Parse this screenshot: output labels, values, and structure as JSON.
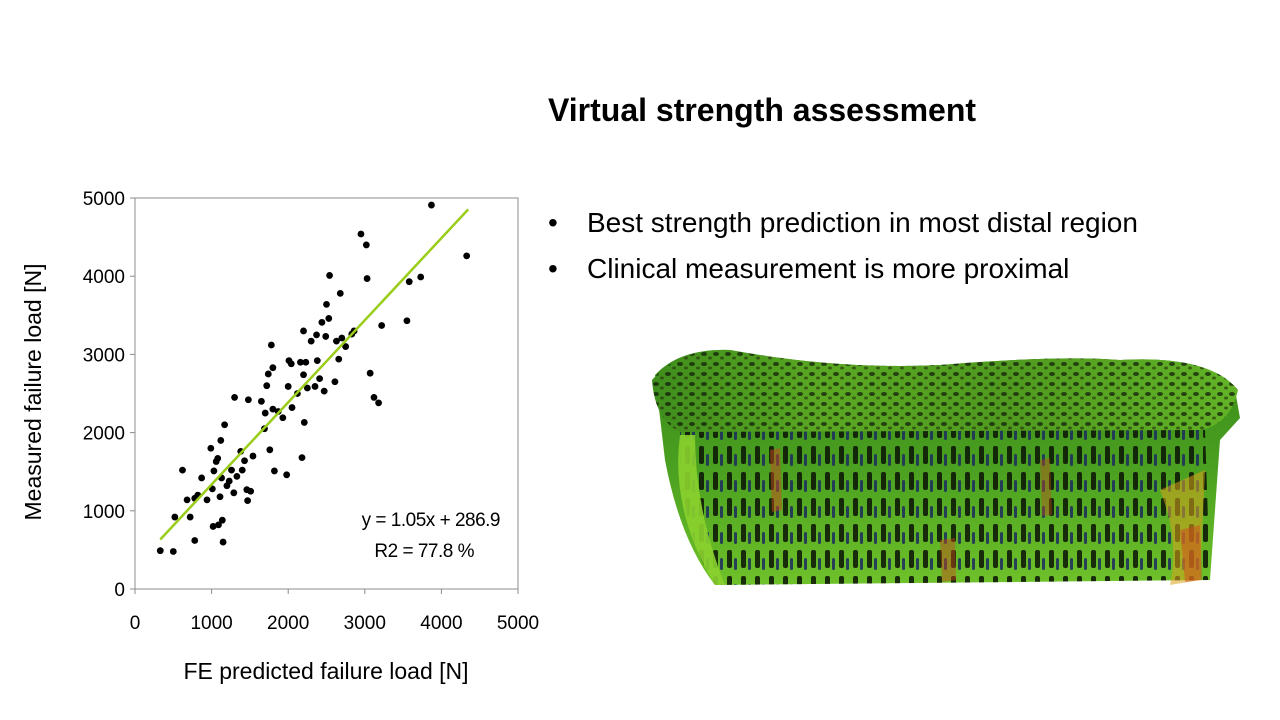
{
  "slide": {
    "title": "Virtual strength assessment",
    "bullets": [
      "Best strength prediction in most distal region",
      "Clinical measurement is more proximal"
    ],
    "bullet_glyph": "•",
    "image": "3D bone micro-structure FE strain map (green/red/blue)"
  },
  "chart_data": {
    "type": "scatter",
    "xlabel": "FE predicted failure load [N]",
    "ylabel": "Measured failure load [N]",
    "xlim": [
      0,
      5000
    ],
    "ylim": [
      0,
      5000
    ],
    "xticks": [
      0,
      1000,
      2000,
      3000,
      4000,
      5000
    ],
    "yticks": [
      0,
      1000,
      2000,
      3000,
      4000,
      5000
    ],
    "x_tick_labels": [
      "0",
      "1000",
      "2000",
      "3000",
      "4000",
      "5000"
    ],
    "y_tick_labels": [
      "0",
      "1000",
      "2000",
      "3000",
      "4000",
      "5000"
    ],
    "grid": false,
    "marker_color": "#000000",
    "trendline": {
      "slope": 1.05,
      "intercept": 286.9,
      "x_range": [
        330,
        4350
      ],
      "color": "#9acd1a"
    },
    "annotations": [
      "y = 1.05x + 286.9",
      "R2 = 77.8 %"
    ],
    "points": [
      [
        330,
        490
      ],
      [
        500,
        480
      ],
      [
        520,
        920
      ],
      [
        620,
        1520
      ],
      [
        680,
        1140
      ],
      [
        720,
        920
      ],
      [
        780,
        1160
      ],
      [
        780,
        620
      ],
      [
        820,
        1200
      ],
      [
        870,
        1420
      ],
      [
        940,
        1140
      ],
      [
        990,
        1800
      ],
      [
        1010,
        1280
      ],
      [
        1020,
        800
      ],
      [
        1030,
        1510
      ],
      [
        1060,
        1630
      ],
      [
        1080,
        1670
      ],
      [
        1090,
        820
      ],
      [
        1110,
        1180
      ],
      [
        1120,
        1900
      ],
      [
        1130,
        1420
      ],
      [
        1140,
        880
      ],
      [
        1150,
        600
      ],
      [
        1170,
        2100
      ],
      [
        1200,
        1320
      ],
      [
        1230,
        1380
      ],
      [
        1260,
        1520
      ],
      [
        1290,
        1230
      ],
      [
        1300,
        2450
      ],
      [
        1330,
        1440
      ],
      [
        1380,
        1760
      ],
      [
        1400,
        1520
      ],
      [
        1430,
        1640
      ],
      [
        1460,
        1270
      ],
      [
        1470,
        1130
      ],
      [
        1480,
        2420
      ],
      [
        1510,
        1250
      ],
      [
        1540,
        1700
      ],
      [
        1650,
        2400
      ],
      [
        1690,
        2050
      ],
      [
        1700,
        2250
      ],
      [
        1720,
        2600
      ],
      [
        1740,
        2750
      ],
      [
        1760,
        1780
      ],
      [
        1780,
        3120
      ],
      [
        1800,
        2300
      ],
      [
        1800,
        2830
      ],
      [
        1820,
        1510
      ],
      [
        1870,
        2270
      ],
      [
        1930,
        2190
      ],
      [
        1980,
        1460
      ],
      [
        2000,
        2590
      ],
      [
        2010,
        2920
      ],
      [
        2040,
        2880
      ],
      [
        2050,
        2320
      ],
      [
        2120,
        2500
      ],
      [
        2160,
        2900
      ],
      [
        2180,
        1680
      ],
      [
        2200,
        3300
      ],
      [
        2200,
        2740
      ],
      [
        2210,
        2130
      ],
      [
        2230,
        2900
      ],
      [
        2250,
        2570
      ],
      [
        2300,
        3170
      ],
      [
        2350,
        2590
      ],
      [
        2370,
        3250
      ],
      [
        2380,
        2920
      ],
      [
        2410,
        2690
      ],
      [
        2440,
        3410
      ],
      [
        2470,
        2530
      ],
      [
        2490,
        3230
      ],
      [
        2500,
        3640
      ],
      [
        2530,
        3460
      ],
      [
        2540,
        4010
      ],
      [
        2610,
        2650
      ],
      [
        2630,
        3170
      ],
      [
        2660,
        2940
      ],
      [
        2680,
        3780
      ],
      [
        2700,
        3210
      ],
      [
        2750,
        3100
      ],
      [
        2830,
        3260
      ],
      [
        2860,
        3300
      ],
      [
        2950,
        4540
      ],
      [
        3020,
        4400
      ],
      [
        3030,
        3970
      ],
      [
        3070,
        2760
      ],
      [
        3120,
        2450
      ],
      [
        3180,
        2380
      ],
      [
        3220,
        3370
      ],
      [
        3550,
        3430
      ],
      [
        3580,
        3930
      ],
      [
        3730,
        3990
      ],
      [
        3870,
        4910
      ],
      [
        4330,
        4260
      ]
    ]
  }
}
